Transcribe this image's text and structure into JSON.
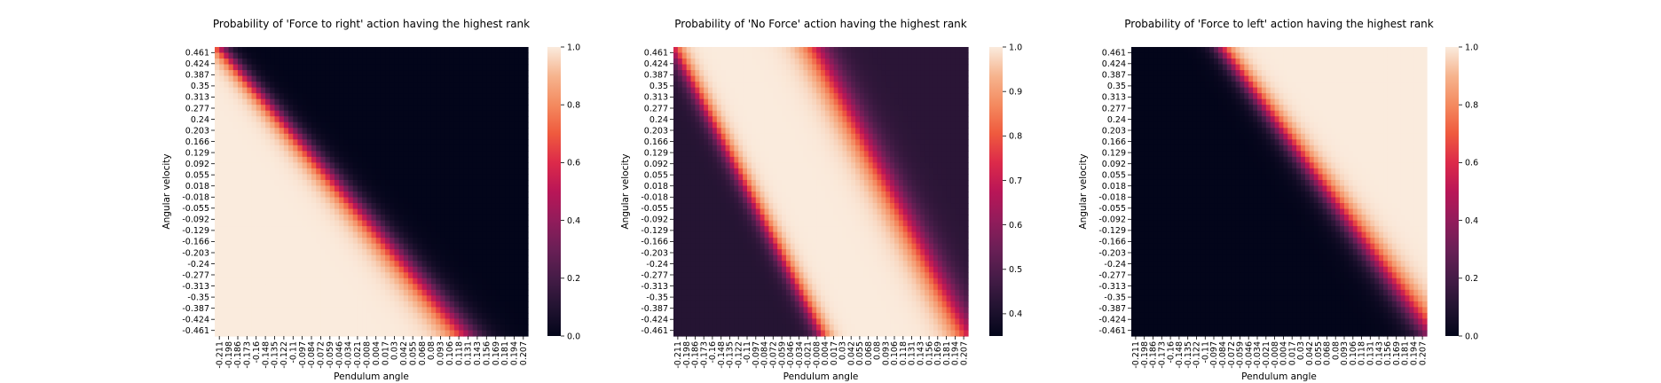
{
  "chart_data": [
    {
      "type": "heatmap",
      "title": "Probability of 'Force to right' action having the highest rank",
      "xlabel": "Pendulum angle",
      "ylabel": "Angular velocity",
      "x_ticks": [
        "-0.211",
        "-0.198",
        "-0.186",
        "-0.173",
        "-0.16",
        "-0.148",
        "-0.135",
        "-0.122",
        "-0.11",
        "-0.097",
        "-0.084",
        "-0.072",
        "-0.059",
        "-0.046",
        "-0.034",
        "-0.021",
        "-0.008",
        "0.004",
        "0.017",
        "0.03",
        "0.042",
        "0.055",
        "0.068",
        "0.08",
        "0.093",
        "0.106",
        "0.118",
        "0.131",
        "0.143",
        "0.156",
        "0.169",
        "0.181",
        "0.194",
        "0.207"
      ],
      "y_ticks": [
        "0.461",
        "0.424",
        "0.387",
        "0.35",
        "0.313",
        "0.277",
        "0.24",
        "0.203",
        "0.166",
        "0.129",
        "0.092",
        "0.055",
        "0.018",
        "-0.018",
        "-0.055",
        "-0.092",
        "-0.129",
        "-0.166",
        "-0.203",
        "-0.24",
        "-0.277",
        "-0.313",
        "-0.35",
        "-0.387",
        "-0.424",
        "-0.461"
      ],
      "colorbar": {
        "min": 0.0,
        "max": 1.0,
        "ticks": [
          "0.0",
          "0.2",
          "0.4",
          "0.6",
          "0.8",
          "1.0"
        ],
        "tick_values": [
          0.0,
          0.2,
          0.4,
          0.6,
          0.8,
          1.0
        ]
      },
      "pattern": {
        "kind": "band",
        "boundary_x_at_top": -0.205,
        "boundary_x_at_bottom": 0.125,
        "boundary_curve": 0.08,
        "high_side": "left",
        "width_at_top": 0.032,
        "width_at_bottom": 0.06,
        "low": 0.0,
        "high": 1.0
      }
    },
    {
      "type": "heatmap",
      "title": "Probability of 'No Force' action having the highest rank",
      "xlabel": "Pendulum angle",
      "ylabel": "Angular velocity",
      "x_ticks": [
        "-0.211",
        "-0.198",
        "-0.186",
        "-0.173",
        "-0.16",
        "-0.148",
        "-0.135",
        "-0.122",
        "-0.11",
        "-0.097",
        "-0.084",
        "-0.072",
        "-0.059",
        "-0.046",
        "-0.034",
        "-0.021",
        "-0.008",
        "0.004",
        "0.017",
        "0.03",
        "0.042",
        "0.055",
        "0.068",
        "0.08",
        "0.093",
        "0.106",
        "0.118",
        "0.131",
        "0.143",
        "0.156",
        "0.169",
        "0.181",
        "0.194",
        "0.207"
      ],
      "y_ticks": [
        "0.461",
        "0.424",
        "0.387",
        "0.35",
        "0.313",
        "0.277",
        "0.24",
        "0.203",
        "0.166",
        "0.129",
        "0.092",
        "0.055",
        "0.018",
        "-0.018",
        "-0.055",
        "-0.092",
        "-0.129",
        "-0.166",
        "-0.203",
        "-0.24",
        "-0.277",
        "-0.313",
        "-0.35",
        "-0.387",
        "-0.424",
        "-0.461"
      ],
      "colorbar": {
        "min": 0.35,
        "max": 1.0,
        "ticks": [
          "0.4",
          "0.5",
          "0.6",
          "0.7",
          "0.8",
          "0.9",
          "1.0"
        ],
        "tick_values": [
          0.4,
          0.5,
          0.6,
          0.7,
          0.8,
          0.9,
          1.0
        ]
      },
      "pattern": {
        "kind": "two-boundaries",
        "left_boundary_x_at_top": -0.211,
        "left_boundary_x_at_bottom": 0.0,
        "right_boundary_x_at_top": -0.01,
        "right_boundary_x_at_bottom": 0.207,
        "left_width": 0.03,
        "right_width": 0.055,
        "low_left": 0.42,
        "low_right": 0.43,
        "high": 1.0
      }
    },
    {
      "type": "heatmap",
      "title": "Probability of 'Force to left' action having the highest rank",
      "xlabel": "Pendulum angle",
      "ylabel": "Angular velocity",
      "x_ticks": [
        "-0.211",
        "-0.198",
        "-0.186",
        "-0.173",
        "-0.16",
        "-0.148",
        "-0.135",
        "-0.122",
        "-0.11",
        "-0.097",
        "-0.084",
        "-0.072",
        "-0.059",
        "-0.046",
        "-0.034",
        "-0.021",
        "-0.008",
        "0.004",
        "0.017",
        "0.03",
        "0.042",
        "0.055",
        "0.068",
        "0.08",
        "0.093",
        "0.106",
        "0.118",
        "0.131",
        "0.143",
        "0.156",
        "0.169",
        "0.181",
        "0.194",
        "0.207"
      ],
      "y_ticks": [
        "0.461",
        "0.424",
        "0.387",
        "0.35",
        "0.313",
        "0.277",
        "0.24",
        "0.203",
        "0.166",
        "0.129",
        "0.092",
        "0.055",
        "0.018",
        "-0.018",
        "-0.055",
        "-0.092",
        "-0.129",
        "-0.166",
        "-0.203",
        "-0.24",
        "-0.277",
        "-0.313",
        "-0.35",
        "-0.387",
        "-0.424",
        "-0.461"
      ],
      "colorbar": {
        "min": 0.0,
        "max": 1.0,
        "ticks": [
          "0.0",
          "0.2",
          "0.4",
          "0.6",
          "0.8",
          "1.0"
        ],
        "tick_values": [
          0.0,
          0.2,
          0.4,
          0.6,
          0.8,
          1.0
        ]
      },
      "pattern": {
        "kind": "band",
        "boundary_x_at_top": -0.085,
        "boundary_x_at_bottom": 0.215,
        "boundary_curve": 0.0,
        "high_side": "right",
        "width_at_top": 0.035,
        "width_at_bottom": 0.055,
        "low": 0.0,
        "high": 1.0
      }
    }
  ]
}
